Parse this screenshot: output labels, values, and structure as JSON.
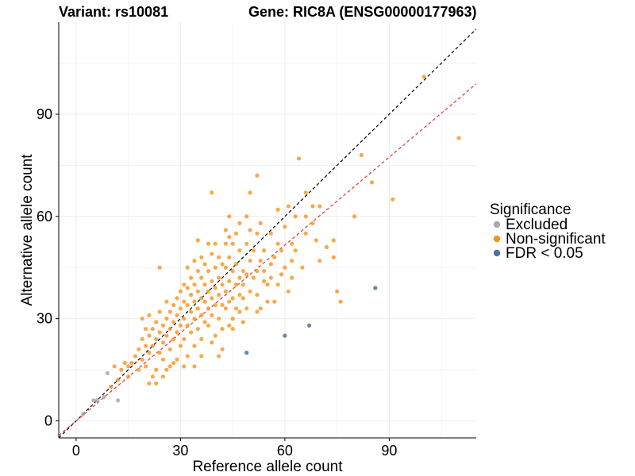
{
  "chart_data": {
    "type": "scatter",
    "title_left": "Variant: rs10081",
    "title_right": "Gene: RIC8A (ENSG00000177963)",
    "xlabel": "Reference allele count",
    "ylabel": "Alternative allele count",
    "xlim": [
      -5,
      115
    ],
    "ylim": [
      -5,
      117
    ],
    "x_ticks": [
      0,
      30,
      60,
      90
    ],
    "y_ticks": [
      0,
      30,
      60,
      90
    ],
    "grid": true,
    "legend_position": "right",
    "legend_title": "Significance",
    "colors": {
      "Excluded": "#aaaaaa",
      "Non-significant": "#f7941d",
      "FDR < 0.05": "#4a73a0",
      "identity_line": "#000000",
      "fit_line": "#e8322c"
    },
    "reference_lines": [
      {
        "name": "identity",
        "slope": 1.0,
        "intercept": 0,
        "style": "dashed",
        "color": "#000000"
      },
      {
        "name": "fit",
        "slope": 0.86,
        "intercept": 0,
        "style": "dashed",
        "color": "#e8322c"
      }
    ],
    "series": [
      {
        "name": "Excluded",
        "points": [
          [
            5,
            6
          ],
          [
            6,
            6
          ],
          [
            9,
            14
          ],
          [
            12,
            6
          ],
          [
            2,
            2
          ],
          [
            8,
            7
          ]
        ]
      },
      {
        "name": "FDR < 0.05",
        "points": [
          [
            49,
            20
          ],
          [
            60,
            25
          ],
          [
            67,
            28
          ],
          [
            86,
            39
          ]
        ]
      },
      {
        "name": "Non-significant",
        "points": [
          [
            100,
            101
          ],
          [
            110,
            83
          ],
          [
            91,
            65
          ],
          [
            85,
            70
          ],
          [
            82,
            78
          ],
          [
            80,
            60
          ],
          [
            74,
            53
          ],
          [
            70,
            63
          ],
          [
            68,
            63
          ],
          [
            68,
            58
          ],
          [
            66,
            67
          ],
          [
            66,
            60
          ],
          [
            66,
            55
          ],
          [
            64,
            77
          ],
          [
            63,
            60
          ],
          [
            63,
            50
          ],
          [
            62,
            52
          ],
          [
            62,
            47
          ],
          [
            61,
            63
          ],
          [
            60,
            57
          ],
          [
            60,
            45
          ],
          [
            59,
            50
          ],
          [
            59,
            43
          ],
          [
            58,
            62
          ],
          [
            58,
            52
          ],
          [
            58,
            40
          ],
          [
            57,
            48
          ],
          [
            56,
            55
          ],
          [
            56,
            46
          ],
          [
            56,
            42
          ],
          [
            55,
            40
          ],
          [
            55,
            35
          ],
          [
            54,
            50
          ],
          [
            54,
            44
          ],
          [
            53,
            58
          ],
          [
            53,
            47
          ],
          [
            52,
            72
          ],
          [
            52,
            55
          ],
          [
            52,
            44
          ],
          [
            52,
            37
          ],
          [
            51,
            42
          ],
          [
            51,
            50
          ],
          [
            50,
            67
          ],
          [
            50,
            56
          ],
          [
            50,
            47
          ],
          [
            50,
            38
          ],
          [
            49,
            60
          ],
          [
            49,
            52
          ],
          [
            49,
            43
          ],
          [
            49,
            33
          ],
          [
            48,
            44
          ],
          [
            48,
            40
          ],
          [
            48,
            36
          ],
          [
            47,
            50
          ],
          [
            47,
            42
          ],
          [
            47,
            37
          ],
          [
            47,
            32
          ],
          [
            46,
            55
          ],
          [
            46,
            46
          ],
          [
            46,
            40
          ],
          [
            45,
            52
          ],
          [
            45,
            44
          ],
          [
            45,
            36
          ],
          [
            45,
            30
          ],
          [
            44,
            48
          ],
          [
            44,
            41
          ],
          [
            44,
            35
          ],
          [
            44,
            28
          ],
          [
            43,
            52
          ],
          [
            43,
            45
          ],
          [
            43,
            38
          ],
          [
            43,
            33
          ],
          [
            42,
            46
          ],
          [
            42,
            40
          ],
          [
            42,
            34
          ],
          [
            42,
            27
          ],
          [
            41,
            48
          ],
          [
            41,
            42
          ],
          [
            41,
            37
          ],
          [
            41,
            30
          ],
          [
            40,
            45
          ],
          [
            40,
            39
          ],
          [
            40,
            34
          ],
          [
            40,
            25
          ],
          [
            39,
            67
          ],
          [
            39,
            49
          ],
          [
            39,
            41
          ],
          [
            39,
            36
          ],
          [
            39,
            31
          ],
          [
            38,
            52
          ],
          [
            38,
            44
          ],
          [
            38,
            38
          ],
          [
            38,
            33
          ],
          [
            38,
            28
          ],
          [
            37,
            46
          ],
          [
            37,
            40
          ],
          [
            37,
            35
          ],
          [
            37,
            29
          ],
          [
            36,
            48
          ],
          [
            36,
            42
          ],
          [
            36,
            36
          ],
          [
            36,
            31
          ],
          [
            36,
            24
          ],
          [
            35,
            53
          ],
          [
            35,
            44
          ],
          [
            35,
            38
          ],
          [
            35,
            33
          ],
          [
            35,
            27
          ],
          [
            34,
            47
          ],
          [
            34,
            40
          ],
          [
            34,
            35
          ],
          [
            34,
            30
          ],
          [
            34,
            22
          ],
          [
            33,
            42
          ],
          [
            33,
            37
          ],
          [
            33,
            32
          ],
          [
            33,
            26
          ],
          [
            32,
            45
          ],
          [
            32,
            39
          ],
          [
            32,
            34
          ],
          [
            32,
            28
          ],
          [
            31,
            40
          ],
          [
            31,
            35
          ],
          [
            31,
            30
          ],
          [
            31,
            24
          ],
          [
            30,
            38
          ],
          [
            30,
            33
          ],
          [
            30,
            28
          ],
          [
            30,
            22
          ],
          [
            29,
            36
          ],
          [
            29,
            31
          ],
          [
            29,
            26
          ],
          [
            28,
            34
          ],
          [
            28,
            29
          ],
          [
            28,
            24
          ],
          [
            28,
            17
          ],
          [
            27,
            32
          ],
          [
            27,
            27
          ],
          [
            27,
            21
          ],
          [
            26,
            35
          ],
          [
            26,
            30
          ],
          [
            26,
            25
          ],
          [
            25,
            28
          ],
          [
            25,
            23
          ],
          [
            25,
            18
          ],
          [
            24,
            45
          ],
          [
            24,
            32
          ],
          [
            24,
            26
          ],
          [
            24,
            20
          ],
          [
            23,
            29
          ],
          [
            23,
            24
          ],
          [
            23,
            15
          ],
          [
            22,
            27
          ],
          [
            22,
            22
          ],
          [
            22,
            13
          ],
          [
            21,
            31
          ],
          [
            21,
            25
          ],
          [
            21,
            20
          ],
          [
            21,
            11
          ],
          [
            20,
            27
          ],
          [
            20,
            22
          ],
          [
            20,
            16
          ],
          [
            19,
            24
          ],
          [
            19,
            18
          ],
          [
            18,
            21
          ],
          [
            18,
            15
          ],
          [
            17,
            19
          ],
          [
            16,
            17
          ],
          [
            15,
            13
          ],
          [
            14,
            17
          ],
          [
            13,
            15
          ],
          [
            12,
            12
          ],
          [
            11,
            16
          ],
          [
            10,
            10
          ],
          [
            15,
            16
          ],
          [
            19,
            30
          ],
          [
            27,
            16
          ],
          [
            31,
            16
          ],
          [
            34,
            16
          ],
          [
            36,
            19
          ],
          [
            41,
            19
          ],
          [
            45,
            27
          ],
          [
            48,
            29
          ],
          [
            53,
            33
          ],
          [
            57,
            35
          ],
          [
            61,
            38
          ],
          [
            65,
            45
          ],
          [
            70,
            47
          ],
          [
            72,
            51
          ],
          [
            74,
            48
          ],
          [
            75,
            38
          ],
          [
            76,
            35
          ],
          [
            69,
            53
          ],
          [
            62,
            42
          ],
          [
            44,
            60
          ],
          [
            44,
            54
          ],
          [
            46,
            33
          ],
          [
            54,
            41
          ],
          [
            39,
            23
          ],
          [
            42,
            21
          ],
          [
            26,
            15
          ],
          [
            29,
            18
          ],
          [
            32,
            19
          ],
          [
            25,
            13
          ],
          [
            23,
            11
          ],
          [
            47,
            58
          ],
          [
            43,
            56
          ],
          [
            40,
            52
          ],
          [
            52,
            32
          ]
        ]
      }
    ]
  }
}
